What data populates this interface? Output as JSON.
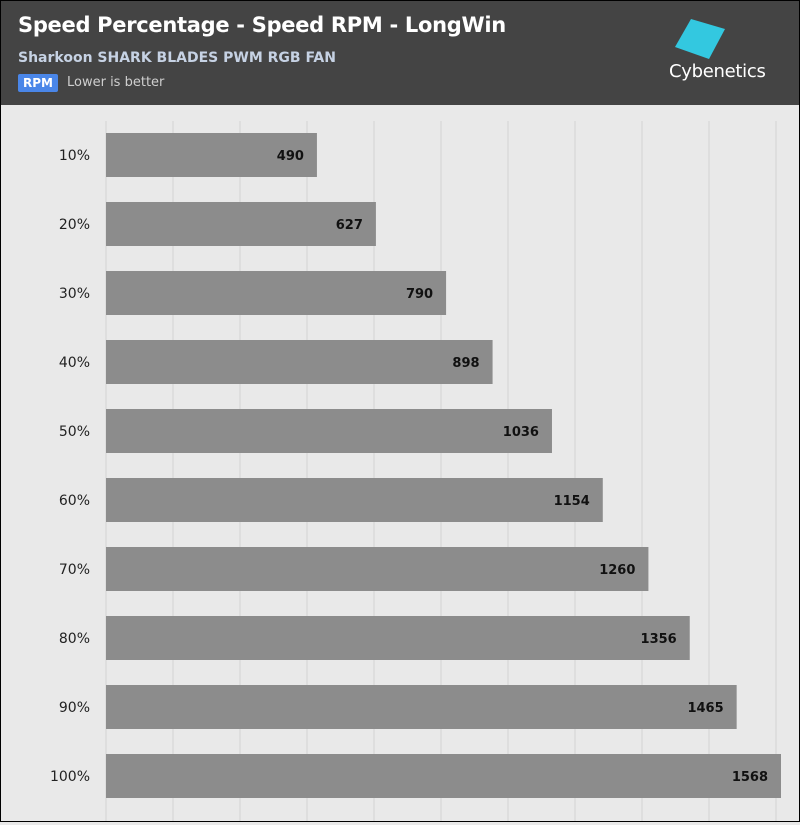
{
  "header": {
    "title": "Speed Percentage - Speed RPM - LongWin",
    "subtitle": "Sharkoon SHARK BLADES PWM RGB FAN",
    "badge": "RPM",
    "note": "Lower is better",
    "logo_text": "Cybenetics"
  },
  "colors": {
    "header_bg": "#444444",
    "plot_bg": "#e9e9e9",
    "bar": "#8c8c8c",
    "badge": "#4a86e8",
    "logo_accent": "#33c8e0"
  },
  "chart_data": {
    "type": "bar",
    "orientation": "horizontal",
    "categories": [
      "10%",
      "20%",
      "30%",
      "40%",
      "50%",
      "60%",
      "70%",
      "80%",
      "90%",
      "100%"
    ],
    "values": [
      490,
      627,
      790,
      898,
      1036,
      1154,
      1260,
      1356,
      1465,
      1568
    ],
    "xlim": [
      0,
      1568
    ],
    "grid": true,
    "legend": "none"
  }
}
